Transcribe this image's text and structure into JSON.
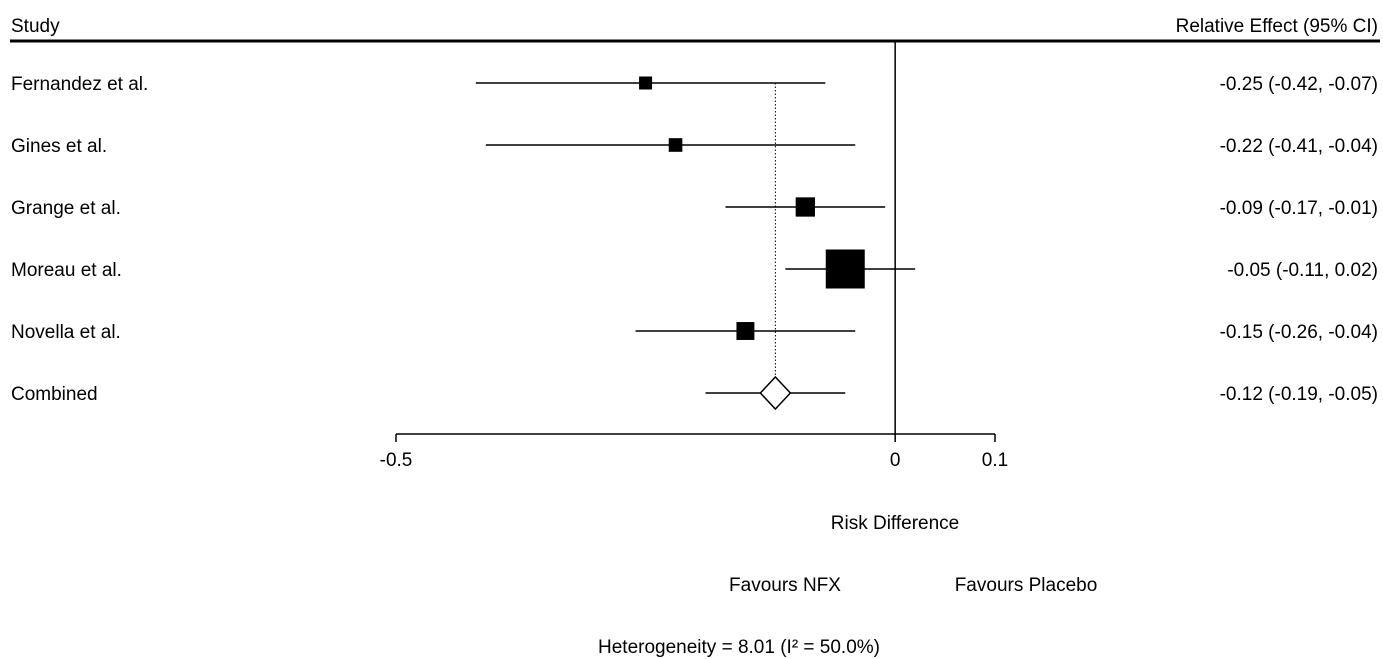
{
  "header": {
    "study_label": "Study",
    "effect_label": "Relative Effect (95% CI)"
  },
  "chart_data": {
    "type": "forest",
    "x_axis": {
      "label": "Risk Difference",
      "ticks": [
        -0.5,
        0,
        0.1
      ],
      "tick_labels": [
        "-0.5",
        "0",
        "0.1"
      ],
      "range": [
        -0.5,
        0.1
      ]
    },
    "studies": [
      {
        "name": "Fernandez et al.",
        "estimate": -0.25,
        "lower": -0.42,
        "upper": -0.07,
        "weight": 1.0,
        "label": "-0.25 (-0.42, -0.07)"
      },
      {
        "name": "Gines et al.",
        "estimate": -0.22,
        "lower": -0.41,
        "upper": -0.04,
        "weight": 1.1,
        "label": "-0.22 (-0.41, -0.04)"
      },
      {
        "name": "Grange et al.",
        "estimate": -0.09,
        "lower": -0.17,
        "upper": -0.01,
        "weight": 2.2,
        "label": "-0.09 (-0.17, -0.01)"
      },
      {
        "name": "Moreau et al.",
        "estimate": -0.05,
        "lower": -0.11,
        "upper": 0.02,
        "weight": 9.0,
        "label": "-0.05 (-0.11, 0.02)"
      },
      {
        "name": "Novella et al.",
        "estimate": -0.15,
        "lower": -0.26,
        "upper": -0.04,
        "weight": 1.9,
        "label": "-0.15 (-0.26, -0.04)"
      }
    ],
    "combined": {
      "name": "Combined",
      "estimate": -0.12,
      "lower": -0.19,
      "upper": -0.05,
      "label": "-0.12 (-0.19, -0.05)"
    },
    "favours_left": "Favours NFX",
    "favours_right": "Favours Placebo",
    "heterogeneity": "Heterogeneity = 8.01 (I² = 50.0%)"
  }
}
